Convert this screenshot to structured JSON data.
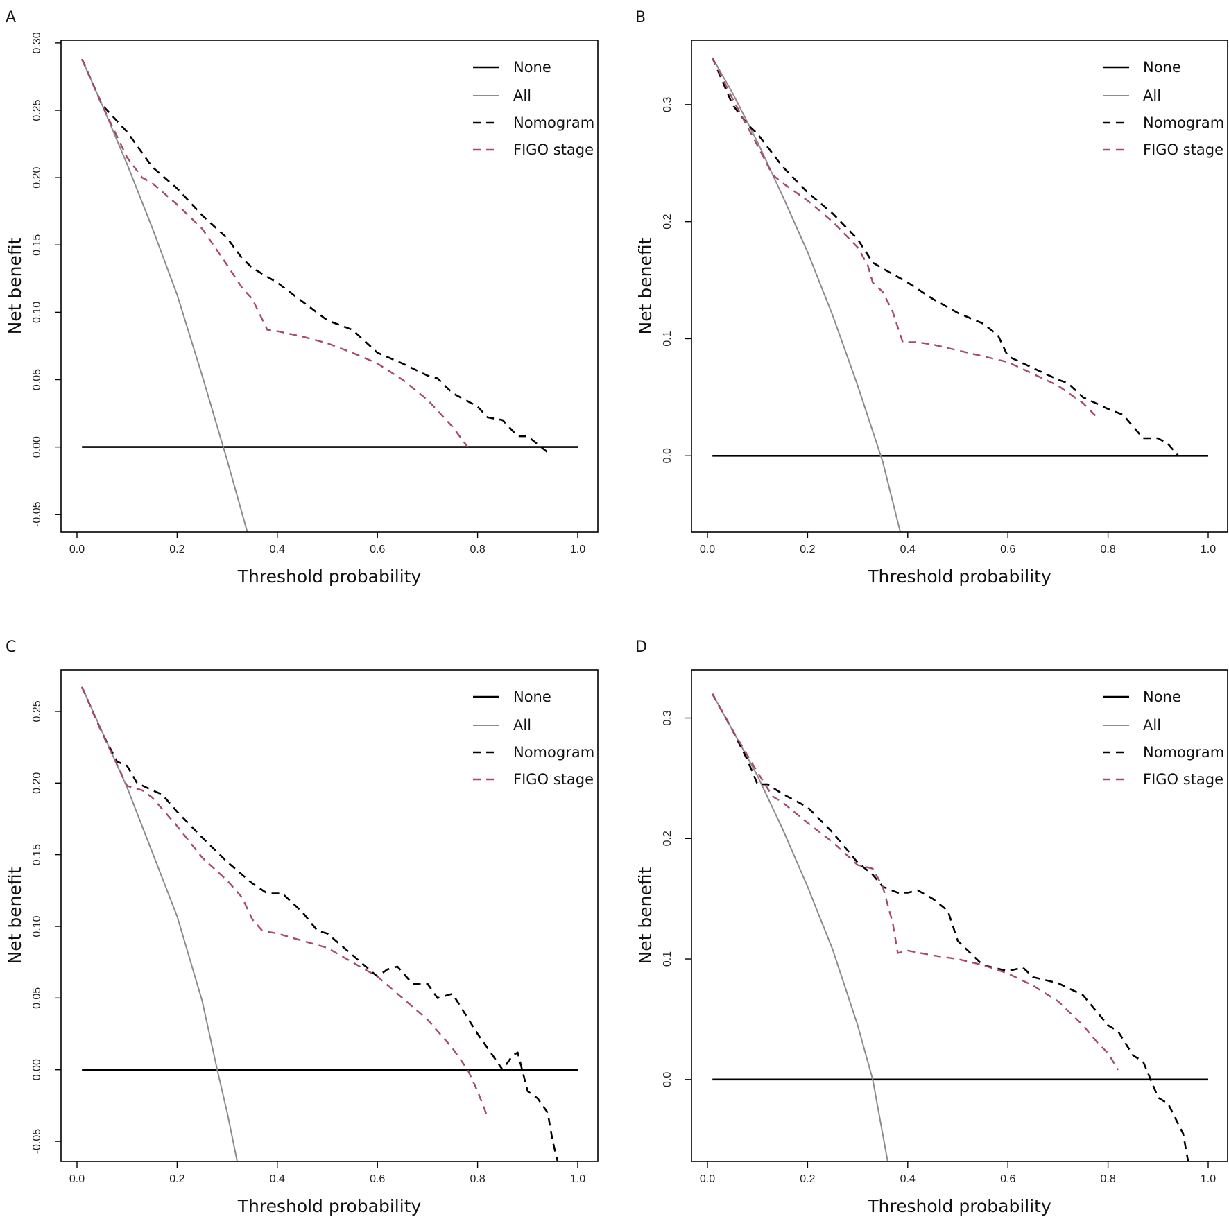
{
  "figure": {
    "legend_items": [
      {
        "label": "None",
        "color": "#000000",
        "dash": "solid"
      },
      {
        "label": "All",
        "color": "#8c8c8c",
        "dash": "solid"
      },
      {
        "label": "Nomogram",
        "color": "#000000",
        "dash": "dashed"
      },
      {
        "label": "FIGO stage",
        "color": "#a94a62",
        "dash": "dashed"
      }
    ]
  },
  "chart_data": [
    {
      "panel": "A",
      "type": "line",
      "xlabel": "Threshold probability",
      "ylabel": "Net benefit",
      "xlim": [
        0.0,
        1.0
      ],
      "ylim": [
        -0.063,
        0.302
      ],
      "xticks": [
        0.0,
        0.2,
        0.4,
        0.6,
        0.8,
        1.0
      ],
      "xtick_labels": [
        "0.0",
        "0.2",
        "0.4",
        "0.6",
        "0.8",
        "1.0"
      ],
      "yticks": [
        -0.05,
        0.0,
        0.05,
        0.1,
        0.15,
        0.2,
        0.25,
        0.3
      ],
      "ytick_labels": [
        "-0.05",
        "0.00",
        "0.05",
        "0.10",
        "0.15",
        "0.20",
        "0.25",
        "0.30"
      ],
      "legend": "top-right",
      "series": [
        {
          "name": "None",
          "x": [
            0.01,
            1.0
          ],
          "y": [
            0.0,
            0.0
          ]
        },
        {
          "name": "All",
          "x": [
            0.01,
            0.05,
            0.1,
            0.15,
            0.2,
            0.25,
            0.3,
            0.34
          ],
          "y": [
            0.288,
            0.254,
            0.21,
            0.163,
            0.113,
            0.053,
            -0.01,
            -0.063
          ]
        },
        {
          "name": "Nomogram",
          "x": [
            0.01,
            0.05,
            0.1,
            0.15,
            0.2,
            0.25,
            0.3,
            0.33,
            0.35,
            0.4,
            0.45,
            0.5,
            0.55,
            0.6,
            0.65,
            0.7,
            0.72,
            0.75,
            0.8,
            0.82,
            0.85,
            0.88,
            0.9,
            0.92,
            0.94
          ],
          "y": [
            0.288,
            0.254,
            0.234,
            0.208,
            0.192,
            0.172,
            0.155,
            0.14,
            0.133,
            0.122,
            0.108,
            0.094,
            0.087,
            0.07,
            0.062,
            0.053,
            0.051,
            0.04,
            0.03,
            0.022,
            0.02,
            0.008,
            0.008,
            0.002,
            -0.004
          ]
        },
        {
          "name": "FIGO stage",
          "x": [
            0.01,
            0.05,
            0.1,
            0.13,
            0.15,
            0.2,
            0.25,
            0.3,
            0.33,
            0.35,
            0.38,
            0.4,
            0.45,
            0.5,
            0.55,
            0.6,
            0.65,
            0.7,
            0.75,
            0.78
          ],
          "y": [
            0.288,
            0.254,
            0.215,
            0.2,
            0.196,
            0.18,
            0.162,
            0.135,
            0.118,
            0.11,
            0.087,
            0.086,
            0.082,
            0.077,
            0.07,
            0.062,
            0.05,
            0.035,
            0.015,
            0.0
          ]
        }
      ]
    },
    {
      "panel": "B",
      "type": "line",
      "xlabel": "Threshold probability",
      "ylabel": "Net benefit",
      "xlim": [
        0.0,
        1.0
      ],
      "ylim": [
        -0.065,
        0.355
      ],
      "xticks": [
        0.0,
        0.2,
        0.4,
        0.6,
        0.8,
        1.0
      ],
      "xtick_labels": [
        "0.0",
        "0.2",
        "0.4",
        "0.6",
        "0.8",
        "1.0"
      ],
      "yticks": [
        0.0,
        0.1,
        0.2,
        0.3
      ],
      "ytick_labels": [
        "0.0",
        "0.1",
        "0.2",
        "0.3"
      ],
      "legend": "top-right",
      "series": [
        {
          "name": "None",
          "x": [
            0.01,
            1.0
          ],
          "y": [
            0.0,
            0.0
          ]
        },
        {
          "name": "All",
          "x": [
            0.01,
            0.05,
            0.1,
            0.15,
            0.2,
            0.25,
            0.3,
            0.35,
            0.385
          ],
          "y": [
            0.34,
            0.31,
            0.268,
            0.222,
            0.174,
            0.12,
            0.06,
            -0.005,
            -0.065
          ]
        },
        {
          "name": "Nomogram",
          "x": [
            0.01,
            0.05,
            0.08,
            0.1,
            0.15,
            0.2,
            0.25,
            0.3,
            0.33,
            0.35,
            0.4,
            0.45,
            0.5,
            0.55,
            0.58,
            0.6,
            0.65,
            0.7,
            0.72,
            0.75,
            0.8,
            0.83,
            0.85,
            0.87,
            0.9,
            0.92,
            0.94
          ],
          "y": [
            0.34,
            0.3,
            0.283,
            0.275,
            0.247,
            0.225,
            0.207,
            0.185,
            0.165,
            0.16,
            0.148,
            0.134,
            0.122,
            0.113,
            0.103,
            0.085,
            0.075,
            0.065,
            0.062,
            0.05,
            0.04,
            0.035,
            0.025,
            0.015,
            0.015,
            0.01,
            0.0
          ]
        },
        {
          "name": "FIGO stage",
          "x": [
            0.01,
            0.05,
            0.1,
            0.13,
            0.15,
            0.2,
            0.25,
            0.3,
            0.32,
            0.33,
            0.35,
            0.37,
            0.39,
            0.42,
            0.45,
            0.5,
            0.55,
            0.6,
            0.65,
            0.7,
            0.75,
            0.78
          ],
          "y": [
            0.34,
            0.305,
            0.265,
            0.24,
            0.233,
            0.218,
            0.2,
            0.178,
            0.163,
            0.148,
            0.14,
            0.123,
            0.097,
            0.097,
            0.095,
            0.09,
            0.085,
            0.08,
            0.07,
            0.06,
            0.045,
            0.032
          ]
        }
      ]
    },
    {
      "panel": "C",
      "type": "line",
      "xlabel": "Threshold probability",
      "ylabel": "Net benefit",
      "xlim": [
        0.0,
        1.0
      ],
      "ylim": [
        -0.064,
        0.279
      ],
      "xticks": [
        0.0,
        0.2,
        0.4,
        0.6,
        0.8,
        1.0
      ],
      "xtick_labels": [
        "0.0",
        "0.2",
        "0.4",
        "0.6",
        "0.8",
        "1.0"
      ],
      "yticks": [
        -0.05,
        0.0,
        0.05,
        0.1,
        0.15,
        0.2,
        0.25
      ],
      "ytick_labels": [
        "-0.05",
        "0.00",
        "0.05",
        "0.10",
        "0.15",
        "0.20",
        "0.25"
      ],
      "legend": "top-right",
      "series": [
        {
          "name": "None",
          "x": [
            0.01,
            1.0
          ],
          "y": [
            0.0,
            0.0
          ]
        },
        {
          "name": "All",
          "x": [
            0.01,
            0.05,
            0.1,
            0.15,
            0.2,
            0.25,
            0.28,
            0.3,
            0.32
          ],
          "y": [
            0.267,
            0.236,
            0.197,
            0.152,
            0.107,
            0.048,
            0.0,
            -0.03,
            -0.064
          ]
        },
        {
          "name": "Nomogram",
          "x": [
            0.01,
            0.05,
            0.08,
            0.1,
            0.12,
            0.15,
            0.17,
            0.2,
            0.25,
            0.3,
            0.35,
            0.38,
            0.41,
            0.45,
            0.48,
            0.5,
            0.55,
            0.6,
            0.62,
            0.64,
            0.67,
            0.7,
            0.72,
            0.75,
            0.8,
            0.83,
            0.85,
            0.87,
            0.88,
            0.9,
            0.92,
            0.94,
            0.95,
            0.96
          ],
          "y": [
            0.267,
            0.235,
            0.215,
            0.212,
            0.2,
            0.195,
            0.192,
            0.18,
            0.162,
            0.145,
            0.13,
            0.123,
            0.123,
            0.11,
            0.097,
            0.095,
            0.08,
            0.065,
            0.07,
            0.072,
            0.06,
            0.06,
            0.05,
            0.053,
            0.025,
            0.01,
            0.0,
            0.01,
            0.012,
            -0.015,
            -0.02,
            -0.03,
            -0.05,
            -0.064
          ]
        },
        {
          "name": "FIGO stage",
          "x": [
            0.01,
            0.05,
            0.1,
            0.13,
            0.15,
            0.2,
            0.25,
            0.3,
            0.33,
            0.35,
            0.37,
            0.4,
            0.45,
            0.5,
            0.55,
            0.6,
            0.65,
            0.7,
            0.75,
            0.78,
            0.8,
            0.82
          ],
          "y": [
            0.267,
            0.235,
            0.198,
            0.195,
            0.19,
            0.17,
            0.148,
            0.132,
            0.12,
            0.105,
            0.097,
            0.095,
            0.09,
            0.085,
            0.075,
            0.065,
            0.05,
            0.035,
            0.015,
            0.0,
            -0.015,
            -0.033
          ]
        }
      ]
    },
    {
      "panel": "D",
      "type": "line",
      "xlabel": "Threshold probability",
      "ylabel": "Net benefit",
      "xlim": [
        0.0,
        1.0
      ],
      "ylim": [
        -0.068,
        0.34
      ],
      "xticks": [
        0.0,
        0.2,
        0.4,
        0.6,
        0.8,
        1.0
      ],
      "xtick_labels": [
        "0.0",
        "0.2",
        "0.4",
        "0.6",
        "0.8",
        "1.0"
      ],
      "yticks": [
        0.0,
        0.1,
        0.2,
        0.3
      ],
      "ytick_labels": [
        "0.0",
        "0.1",
        "0.2",
        "0.3"
      ],
      "legend": "top-right",
      "series": [
        {
          "name": "None",
          "x": [
            0.01,
            1.0
          ],
          "y": [
            0.0,
            0.0
          ]
        },
        {
          "name": "All",
          "x": [
            0.01,
            0.05,
            0.1,
            0.15,
            0.2,
            0.25,
            0.3,
            0.33,
            0.36
          ],
          "y": [
            0.32,
            0.29,
            0.252,
            0.208,
            0.16,
            0.108,
            0.045,
            0.0,
            -0.068
          ]
        },
        {
          "name": "Nomogram",
          "x": [
            0.01,
            0.05,
            0.08,
            0.1,
            0.12,
            0.15,
            0.2,
            0.25,
            0.3,
            0.33,
            0.35,
            0.38,
            0.4,
            0.42,
            0.45,
            0.48,
            0.5,
            0.55,
            0.6,
            0.63,
            0.65,
            0.7,
            0.75,
            0.78,
            0.8,
            0.82,
            0.85,
            0.87,
            0.88,
            0.9,
            0.92,
            0.95,
            0.96
          ],
          "y": [
            0.32,
            0.29,
            0.265,
            0.245,
            0.245,
            0.237,
            0.226,
            0.205,
            0.18,
            0.17,
            0.16,
            0.155,
            0.155,
            0.157,
            0.15,
            0.14,
            0.115,
            0.095,
            0.09,
            0.093,
            0.085,
            0.08,
            0.07,
            0.055,
            0.045,
            0.04,
            0.02,
            0.015,
            0.005,
            -0.015,
            -0.02,
            -0.045,
            -0.068
          ]
        },
        {
          "name": "FIGO stage",
          "x": [
            0.01,
            0.05,
            0.1,
            0.13,
            0.15,
            0.2,
            0.25,
            0.3,
            0.33,
            0.35,
            0.37,
            0.38,
            0.4,
            0.45,
            0.5,
            0.55,
            0.6,
            0.65,
            0.7,
            0.75,
            0.78,
            0.8,
            0.82
          ],
          "y": [
            0.32,
            0.29,
            0.255,
            0.235,
            0.23,
            0.213,
            0.197,
            0.178,
            0.175,
            0.16,
            0.13,
            0.105,
            0.107,
            0.103,
            0.1,
            0.095,
            0.088,
            0.078,
            0.065,
            0.045,
            0.03,
            0.022,
            0.008
          ]
        }
      ]
    }
  ]
}
